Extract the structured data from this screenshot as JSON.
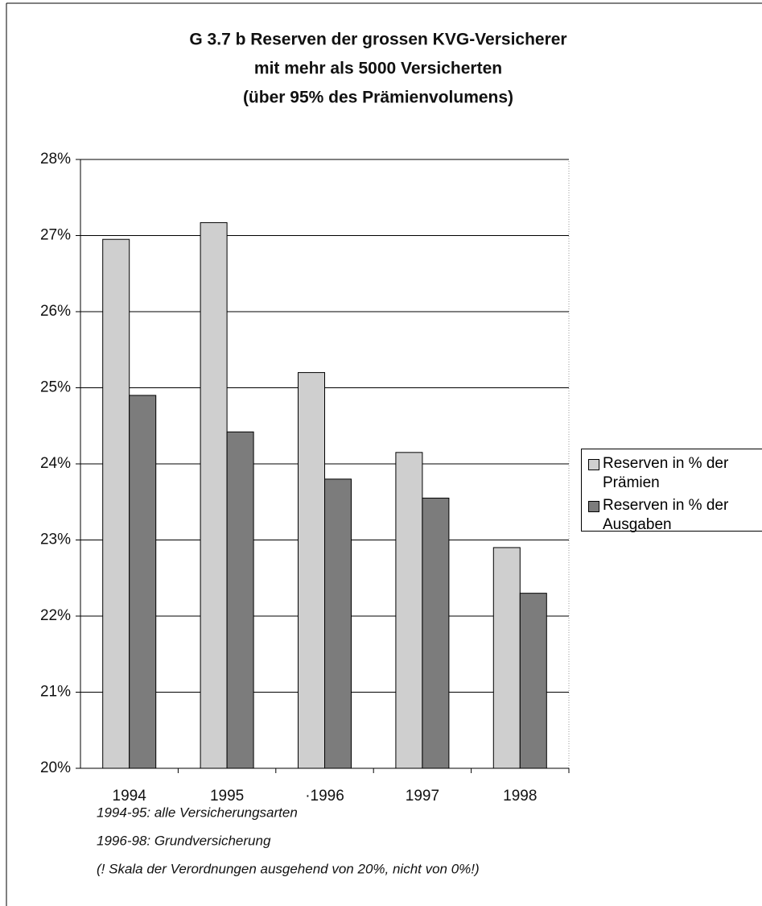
{
  "chart_data": {
    "type": "bar",
    "title": [
      "G 3.7 b  Reserven der grossen KVG-Versicherer",
      "mit mehr als 5000 Versicherten",
      "(über 95% des Prämienvolumens)"
    ],
    "categories": [
      "1994",
      "1995",
      "·1996",
      "1997",
      "1998"
    ],
    "series": [
      {
        "name": "Reserven in % der Prämien",
        "color": "#cfcfcf",
        "values": [
          26.95,
          27.17,
          25.2,
          24.15,
          22.9
        ]
      },
      {
        "name": "Reserven in % der Ausgaben",
        "color": "#7c7c7c",
        "values": [
          24.9,
          24.42,
          23.8,
          23.55,
          22.3
        ]
      }
    ],
    "ylim": [
      20,
      28
    ],
    "yticks": [
      {
        "value": 20,
        "label": "20%"
      },
      {
        "value": 21,
        "label": "21%"
      },
      {
        "value": 22,
        "label": "22%"
      },
      {
        "value": 23,
        "label": "23%"
      },
      {
        "value": 24,
        "label": "24%"
      },
      {
        "value": 25,
        "label": "25%"
      },
      {
        "value": 26,
        "label": "26%"
      },
      {
        "value": 27,
        "label": "27%"
      },
      {
        "value": 28,
        "label": "28%"
      }
    ],
    "grid": true,
    "legend": "right",
    "notes": [
      "1994-95: alle Versicherungsarten",
      "1996-98: Grundversicherung",
      "(! Skala der Verordnungen ausgehend von 20%, nicht von 0%!)"
    ]
  }
}
